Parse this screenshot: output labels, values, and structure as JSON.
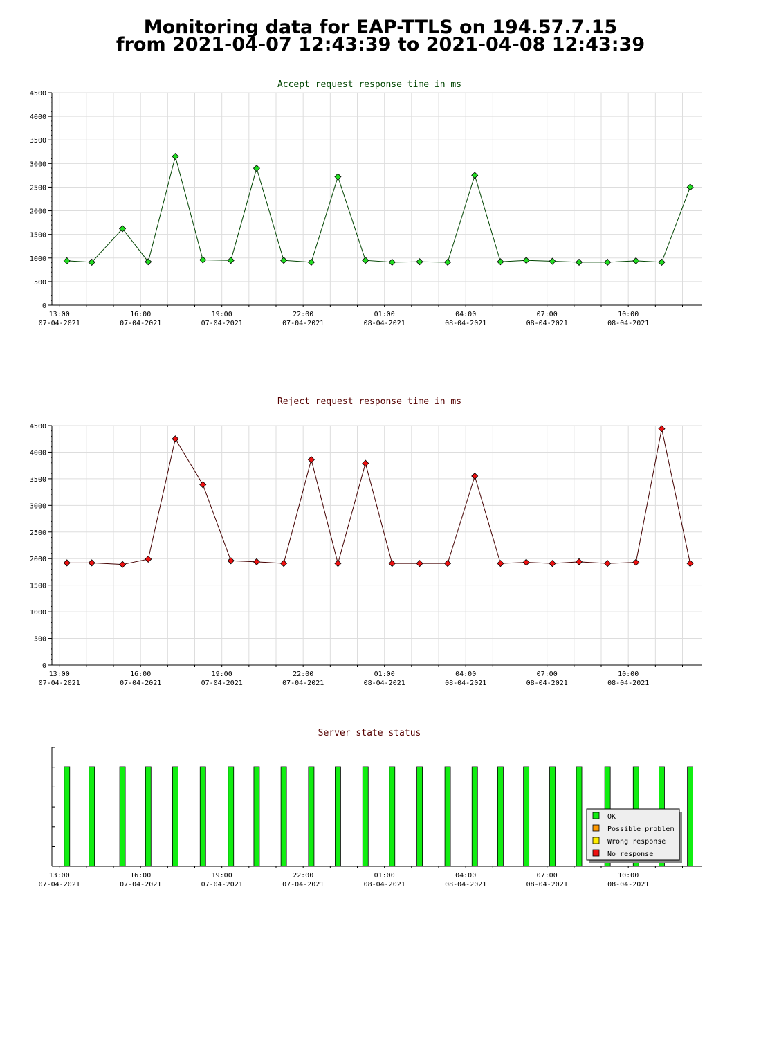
{
  "page": {
    "title_line1": "Monitoring data for EAP-TTLS on 194.57.7.15",
    "title_line2": "from 2021-04-07 12:43:39 to 2021-04-08 12:43:39"
  },
  "colors": {
    "accept_marker": "#22dd22",
    "accept_line": "#004400",
    "reject_marker": "#ee1111",
    "reject_line": "#440000",
    "status_ok": "#11ee11",
    "status_possible_problem": "#ff9900",
    "status_wrong_response": "#ffee00",
    "status_no_response": "#ee1111",
    "grid": "#dddddd"
  },
  "chart_data": [
    {
      "type": "line",
      "title": "Accept request response time in ms",
      "ylim": [
        0,
        4500
      ],
      "yticks": [
        0,
        500,
        1000,
        1500,
        2000,
        2500,
        3000,
        3500,
        4000,
        4500
      ],
      "xticks": [
        {
          "time": "13:00",
          "date": "07-04-2021"
        },
        {
          "time": "16:00",
          "date": "07-04-2021"
        },
        {
          "time": "19:00",
          "date": "07-04-2021"
        },
        {
          "time": "22:00",
          "date": "07-04-2021"
        },
        {
          "time": "01:00",
          "date": "08-04-2021"
        },
        {
          "time": "04:00",
          "date": "08-04-2021"
        },
        {
          "time": "07:00",
          "date": "08-04-2021"
        },
        {
          "time": "10:00",
          "date": "08-04-2021"
        }
      ],
      "grid": true,
      "x": [
        "2021-04-07 13:17",
        "2021-04-07 14:12",
        "2021-04-07 15:20",
        "2021-04-07 16:17",
        "2021-04-07 17:17",
        "2021-04-07 18:18",
        "2021-04-07 19:20",
        "2021-04-07 20:17",
        "2021-04-07 21:17",
        "2021-04-07 22:18",
        "2021-04-07 23:17",
        "2021-04-08 00:18",
        "2021-04-08 01:17",
        "2021-04-08 02:18",
        "2021-04-08 03:20",
        "2021-04-08 04:20",
        "2021-04-08 05:17",
        "2021-04-08 06:14",
        "2021-04-08 07:12",
        "2021-04-08 08:11",
        "2021-04-08 09:14",
        "2021-04-08 10:17",
        "2021-04-08 11:14",
        "2021-04-08 12:17"
      ],
      "values": [
        940,
        910,
        1620,
        920,
        3150,
        960,
        950,
        2900,
        950,
        910,
        2720,
        950,
        910,
        920,
        910,
        2750,
        920,
        950,
        930,
        910,
        910,
        940,
        910,
        2500
      ]
    },
    {
      "type": "line",
      "title": "Reject request response time in ms",
      "ylim": [
        0,
        4500
      ],
      "yticks": [
        0,
        500,
        1000,
        1500,
        2000,
        2500,
        3000,
        3500,
        4000,
        4500
      ],
      "xticks": [
        {
          "time": "13:00",
          "date": "07-04-2021"
        },
        {
          "time": "16:00",
          "date": "07-04-2021"
        },
        {
          "time": "19:00",
          "date": "07-04-2021"
        },
        {
          "time": "22:00",
          "date": "07-04-2021"
        },
        {
          "time": "01:00",
          "date": "08-04-2021"
        },
        {
          "time": "04:00",
          "date": "08-04-2021"
        },
        {
          "time": "07:00",
          "date": "08-04-2021"
        },
        {
          "time": "10:00",
          "date": "08-04-2021"
        }
      ],
      "grid": true,
      "x": [
        "2021-04-07 13:17",
        "2021-04-07 14:12",
        "2021-04-07 15:20",
        "2021-04-07 16:17",
        "2021-04-07 17:17",
        "2021-04-07 18:18",
        "2021-04-07 19:20",
        "2021-04-07 20:17",
        "2021-04-07 21:17",
        "2021-04-07 22:18",
        "2021-04-07 23:17",
        "2021-04-08 00:18",
        "2021-04-08 01:17",
        "2021-04-08 02:18",
        "2021-04-08 03:20",
        "2021-04-08 04:20",
        "2021-04-08 05:17",
        "2021-04-08 06:14",
        "2021-04-08 07:12",
        "2021-04-08 08:11",
        "2021-04-08 09:14",
        "2021-04-08 10:17",
        "2021-04-08 11:14",
        "2021-04-08 12:17"
      ],
      "values": [
        1920,
        1920,
        1890,
        1990,
        4250,
        3390,
        1960,
        1940,
        1910,
        3860,
        1910,
        3790,
        1910,
        1910,
        1910,
        3550,
        1910,
        1930,
        1910,
        1940,
        1910,
        1930,
        4440,
        1910
      ]
    },
    {
      "type": "bar",
      "title": "Server state status",
      "xticks": [
        {
          "time": "13:00",
          "date": "07-04-2021"
        },
        {
          "time": "16:00",
          "date": "07-04-2021"
        },
        {
          "time": "19:00",
          "date": "07-04-2021"
        },
        {
          "time": "22:00",
          "date": "07-04-2021"
        },
        {
          "time": "01:00",
          "date": "08-04-2021"
        },
        {
          "time": "04:00",
          "date": "08-04-2021"
        },
        {
          "time": "07:00",
          "date": "08-04-2021"
        },
        {
          "time": "10:00",
          "date": "08-04-2021"
        }
      ],
      "x": [
        "2021-04-07 13:17",
        "2021-04-07 14:12",
        "2021-04-07 15:20",
        "2021-04-07 16:17",
        "2021-04-07 17:17",
        "2021-04-07 18:18",
        "2021-04-07 19:20",
        "2021-04-07 20:17",
        "2021-04-07 21:17",
        "2021-04-07 22:18",
        "2021-04-07 23:17",
        "2021-04-08 00:18",
        "2021-04-08 01:17",
        "2021-04-08 02:18",
        "2021-04-08 03:20",
        "2021-04-08 04:20",
        "2021-04-08 05:17",
        "2021-04-08 06:14",
        "2021-04-08 07:12",
        "2021-04-08 08:11",
        "2021-04-08 09:14",
        "2021-04-08 10:17",
        "2021-04-08 11:14",
        "2021-04-08 12:17"
      ],
      "states": [
        "OK",
        "OK",
        "OK",
        "OK",
        "OK",
        "OK",
        "OK",
        "OK",
        "OK",
        "OK",
        "OK",
        "OK",
        "OK",
        "OK",
        "OK",
        "OK",
        "OK",
        "OK",
        "OK",
        "OK",
        "OK",
        "OK",
        "OK",
        "OK"
      ],
      "legend": {
        "position": "bottom-right",
        "entries": [
          "OK",
          "Possible problem",
          "Wrong response",
          "No response"
        ]
      }
    }
  ]
}
